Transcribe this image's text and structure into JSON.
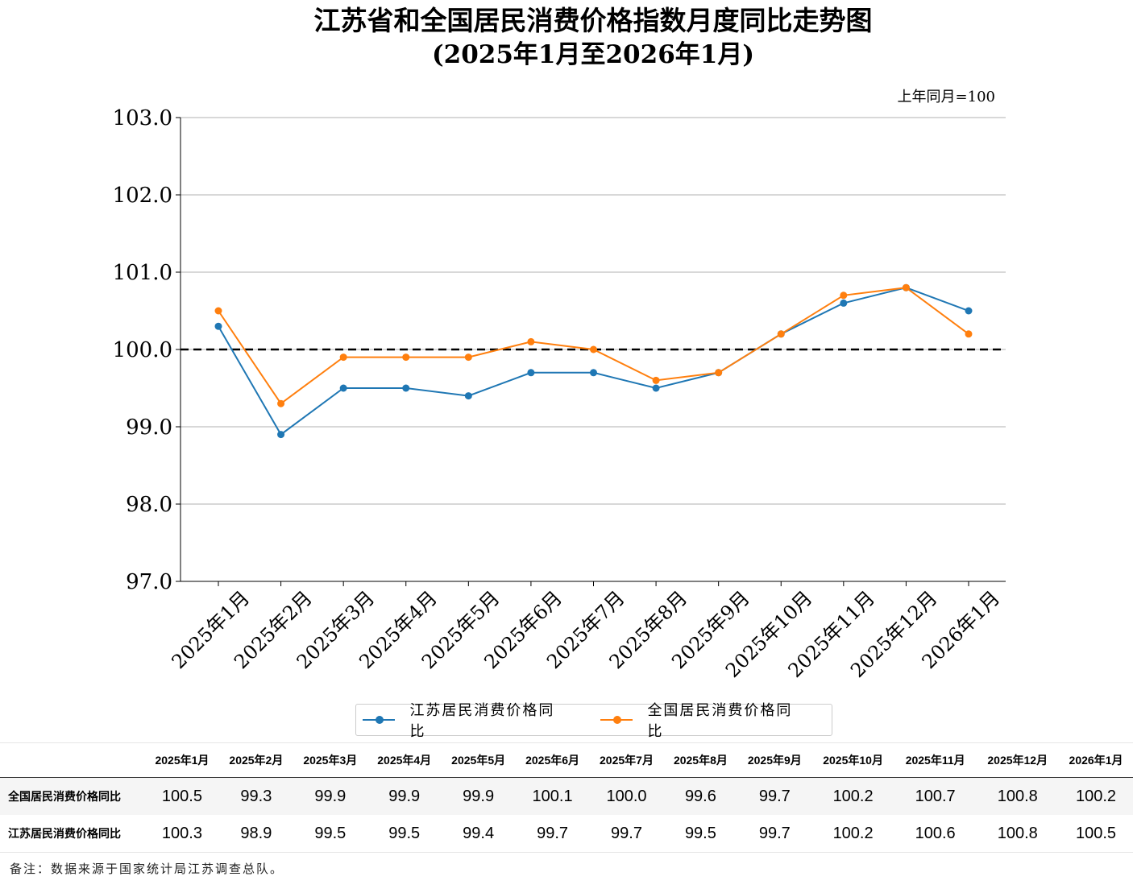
{
  "chart_data": {
    "type": "line",
    "title": "江苏省和全国居民消费价格指数月度同比走势图",
    "subtitle": "(2025年1月至2026年1月)",
    "unit_note": "上年同月=100",
    "categories": [
      "2025年1月",
      "2025年2月",
      "2025年3月",
      "2025年4月",
      "2025年5月",
      "2025年6月",
      "2025年7月",
      "2025年8月",
      "2025年9月",
      "2025年10月",
      "2025年11月",
      "2025年12月",
      "2026年1月"
    ],
    "series": [
      {
        "name": "江苏居民消费价格同比",
        "color": "#1f77b4",
        "values": [
          100.3,
          98.9,
          99.5,
          99.5,
          99.4,
          99.7,
          99.7,
          99.5,
          99.7,
          100.2,
          100.6,
          100.8,
          100.5
        ]
      },
      {
        "name": "全国居民消费价格同比",
        "color": "#ff7f0e",
        "values": [
          100.5,
          99.3,
          99.9,
          99.9,
          99.9,
          100.1,
          100.0,
          99.6,
          99.7,
          100.2,
          100.7,
          100.8,
          100.2
        ]
      }
    ],
    "ylim": [
      97.0,
      103.0
    ],
    "yticks": [
      "97.0",
      "98.0",
      "99.0",
      "100.0",
      "101.0",
      "102.0",
      "103.0"
    ],
    "reference_line": 100.0,
    "grid": "horizontal",
    "legend_position": "bottom-center"
  },
  "table": {
    "headers": [
      "2025年1月",
      "2025年2月",
      "2025年3月",
      "2025年4月",
      "2025年5月",
      "2025年6月",
      "2025年7月",
      "2025年8月",
      "2025年9月",
      "2025年10月",
      "2025年11月",
      "2025年12月",
      "2026年1月"
    ],
    "rows": [
      {
        "label": "全国居民消费价格同比",
        "values": [
          "100.5",
          "99.3",
          "99.9",
          "99.9",
          "99.9",
          "100.1",
          "100.0",
          "99.6",
          "99.7",
          "100.2",
          "100.7",
          "100.8",
          "100.2"
        ]
      },
      {
        "label": "江苏居民消费价格同比",
        "values": [
          "100.3",
          "98.9",
          "99.5",
          "99.5",
          "99.4",
          "99.7",
          "99.7",
          "99.5",
          "99.7",
          "100.2",
          "100.6",
          "100.8",
          "100.5"
        ]
      }
    ]
  },
  "note": "备注：数据来源于国家统计局江苏调查总队。"
}
